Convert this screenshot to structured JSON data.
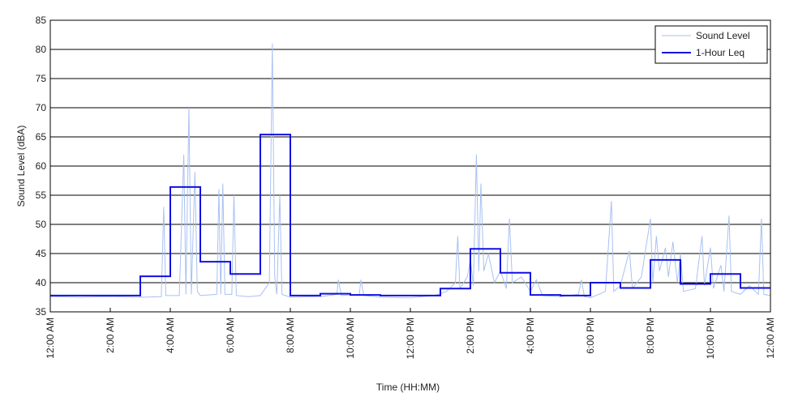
{
  "chart_data": {
    "type": "line",
    "x_label": "Time (HH:MM)",
    "y_label": "Sound Level (dBA)",
    "xlim": [
      0,
      24
    ],
    "ylim": [
      35,
      85
    ],
    "yticks": [
      35,
      40,
      45,
      50,
      55,
      60,
      65,
      70,
      75,
      80,
      85
    ],
    "xticks": [
      {
        "value": 0,
        "label": "12:00 AM"
      },
      {
        "value": 2,
        "label": "2:00 AM"
      },
      {
        "value": 4,
        "label": "4:00 AM"
      },
      {
        "value": 6,
        "label": "6:00 AM"
      },
      {
        "value": 8,
        "label": "8:00 AM"
      },
      {
        "value": 10,
        "label": "10:00 AM"
      },
      {
        "value": 12,
        "label": "12:00 PM"
      },
      {
        "value": 14,
        "label": "2:00 PM"
      },
      {
        "value": 16,
        "label": "4:00 PM"
      },
      {
        "value": 18,
        "label": "6:00 PM"
      },
      {
        "value": 20,
        "label": "8:00 PM"
      },
      {
        "value": 22,
        "label": "10:00 PM"
      },
      {
        "value": 24,
        "label": "12:00 AM"
      }
    ],
    "grid": "y",
    "legend": "upper right",
    "series": [
      {
        "name": "Sound Level",
        "color": "#a9c1f2",
        "style": "line",
        "x": [
          0,
          1,
          2,
          3,
          3.7,
          3.78,
          3.85,
          4.3,
          4.45,
          4.52,
          4.62,
          4.7,
          4.82,
          4.9,
          5.0,
          5.55,
          5.62,
          5.68,
          5.75,
          5.82,
          6.05,
          6.12,
          6.2,
          6.6,
          7.0,
          7.3,
          7.4,
          7.48,
          7.55,
          7.65,
          7.72,
          8.0,
          9.0,
          9.55,
          9.6,
          9.7,
          10.3,
          10.35,
          10.45,
          11,
          12,
          12.8,
          13.2,
          13.5,
          13.58,
          13.65,
          13.9,
          14.0,
          14.1,
          14.2,
          14.28,
          14.35,
          14.45,
          14.6,
          14.8,
          15.0,
          15.2,
          15.3,
          15.4,
          15.7,
          16.0,
          16.2,
          16.4,
          17,
          17.6,
          17.7,
          17.8,
          18,
          18.5,
          18.7,
          18.78,
          19.0,
          19.3,
          19.4,
          19.7,
          20.0,
          20.08,
          20.2,
          20.3,
          20.5,
          20.6,
          20.75,
          20.9,
          21.0,
          21.1,
          21.5,
          21.72,
          21.8,
          22.0,
          22.1,
          22.35,
          22.45,
          22.62,
          22.7,
          23.0,
          23.3,
          23.6,
          23.7,
          23.78,
          24
        ],
        "values": [
          37.6,
          37.5,
          37.6,
          37.5,
          37.6,
          53,
          37.8,
          37.8,
          62,
          38,
          70,
          38,
          59,
          38.5,
          37.8,
          38,
          56,
          38,
          57,
          38,
          38,
          55,
          37.8,
          37.6,
          37.8,
          40,
          81,
          41,
          38,
          55,
          38,
          37.5,
          37.6,
          38,
          40.5,
          37.8,
          38,
          40.5,
          37.8,
          37.5,
          37.4,
          37.8,
          38.5,
          40,
          48,
          39,
          41,
          44,
          39.5,
          62,
          42,
          57,
          42,
          45,
          40,
          42,
          39,
          51,
          40,
          41,
          38.5,
          40.5,
          37.8,
          37.6,
          38,
          40.5,
          37.6,
          37.4,
          38.5,
          54,
          38.5,
          39.5,
          45.5,
          39,
          41,
          51,
          40,
          48,
          42,
          46,
          41,
          47,
          40,
          45,
          38.5,
          39,
          48,
          39.5,
          46,
          39,
          43,
          38.5,
          51.5,
          38.5,
          38,
          39.5,
          38,
          51,
          38,
          37.8
        ]
      },
      {
        "name": "1-Hour Leq",
        "color": "#1010e0",
        "style": "step",
        "x": [
          0,
          1,
          2,
          3,
          4,
          5,
          6,
          7,
          8,
          9,
          10,
          11,
          12,
          13,
          14,
          15,
          16,
          17,
          18,
          19,
          20,
          21,
          22,
          23
        ],
        "values": [
          37.8,
          37.8,
          37.8,
          41.1,
          56.4,
          43.6,
          41.5,
          65.4,
          37.8,
          38.1,
          37.9,
          37.8,
          37.8,
          39.0,
          45.8,
          41.7,
          37.9,
          37.8,
          40.0,
          39.1,
          43.9,
          39.8,
          41.5,
          39.1
        ]
      }
    ]
  }
}
